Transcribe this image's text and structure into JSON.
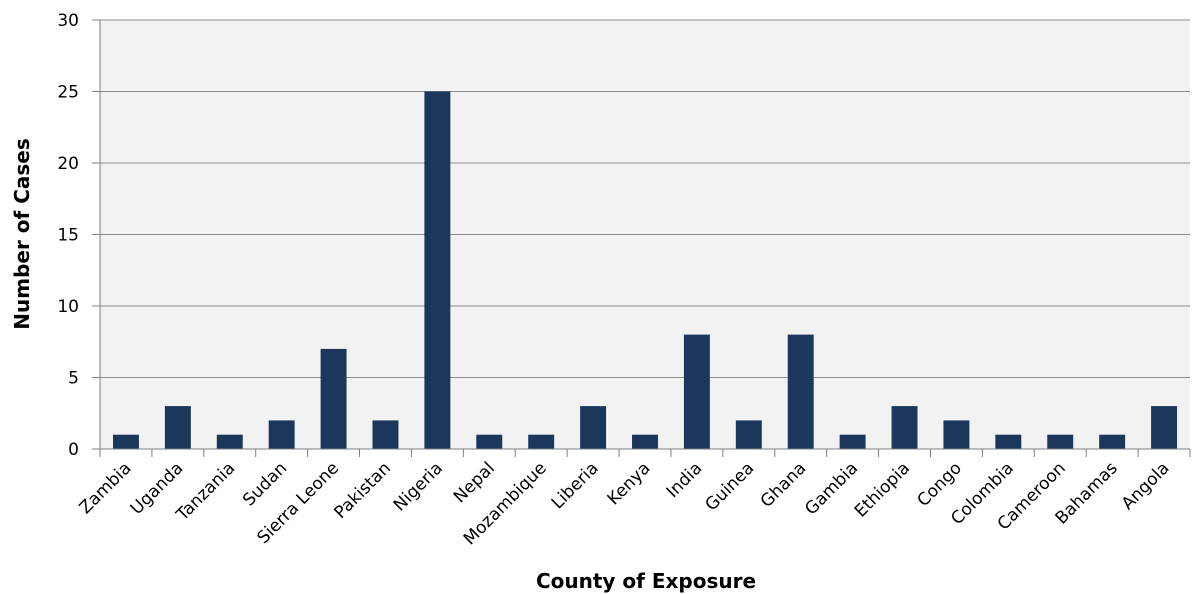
{
  "chart_data": {
    "type": "bar",
    "title": "",
    "xlabel": "County of Exposure",
    "ylabel": "Number of Cases",
    "ylim": [
      0,
      30
    ],
    "yticks": [
      0,
      5,
      10,
      15,
      20,
      25,
      30
    ],
    "grid": true,
    "legend": "none",
    "categories": [
      "Zambia",
      "Uganda",
      "Tanzania",
      "Sudan",
      "Sierra Leone",
      "Pakistan",
      "Nigeria",
      "Nepal",
      "Mozambique",
      "Liberia",
      "Kenya",
      "India",
      "Guinea",
      "Ghana",
      "Gambia",
      "Ethiopia",
      "Congo",
      "Colombia",
      "Cameroon",
      "Bahamas",
      "Angola"
    ],
    "values": [
      1,
      3,
      1,
      2,
      7,
      2,
      25,
      1,
      1,
      3,
      1,
      8,
      2,
      8,
      1,
      3,
      2,
      1,
      1,
      1,
      3
    ],
    "colors": {
      "bar": "#1b375c",
      "plot_background": "#f2f2f2",
      "gridline": "#8c8c8c",
      "axis": "#7f7f7f"
    }
  }
}
